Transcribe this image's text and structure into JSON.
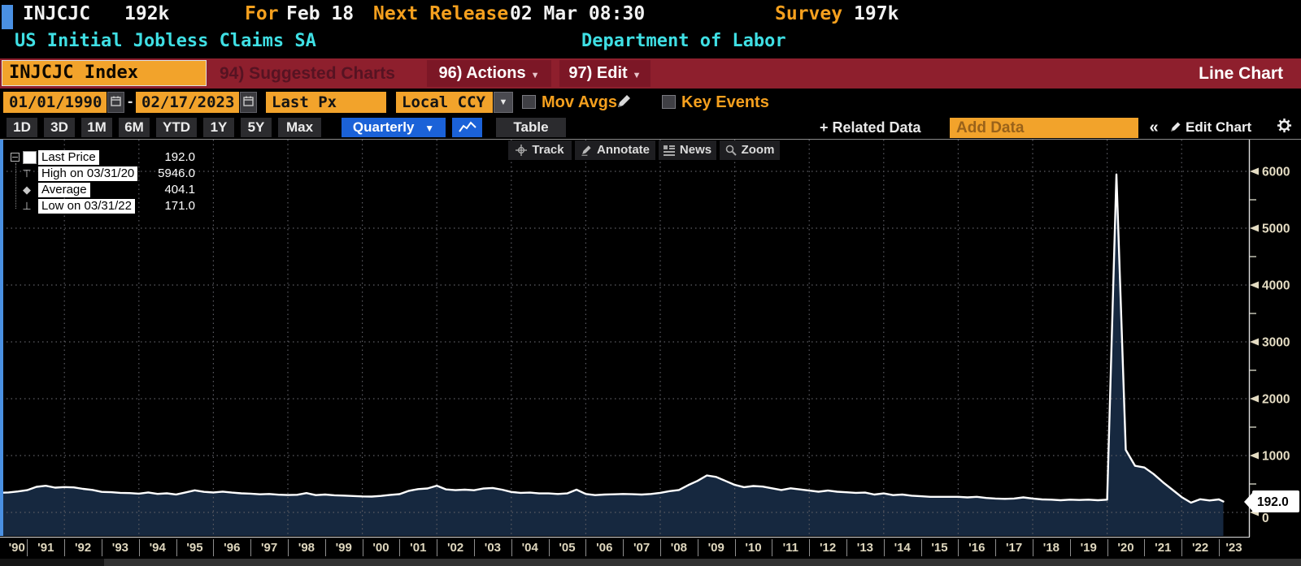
{
  "header": {
    "ticker": "INJCJC",
    "last_value": "192k",
    "for_label": "For",
    "for_value": "Feb 18",
    "next_release_label": "Next Release",
    "next_release_value": "02 Mar 08:30",
    "survey_label": "Survey",
    "survey_value": "197k",
    "security_name": "US Initial Jobless Claims SA",
    "source": "Department of Labor"
  },
  "menubar": {
    "ticker_field": "INJCJC Index",
    "suggested_charts": "94) Suggested Charts",
    "actions": "96) Actions",
    "edit": "97) Edit",
    "chart_type": "Line Chart"
  },
  "controls": {
    "date_from": "01/01/1990",
    "date_to": "02/17/2023",
    "separator": "-",
    "price_field": "Last Px",
    "currency_field": "Local CCY",
    "mov_avgs_label": "Mov Avgs",
    "key_events_label": "Key Events"
  },
  "toolbar": {
    "ranges": [
      "1D",
      "3D",
      "1M",
      "6M",
      "YTD",
      "1Y",
      "5Y",
      "Max"
    ],
    "period": "Quarterly",
    "period_arrow": "▼",
    "table_label": "Table",
    "related_label": "+ Related Data",
    "add_data_placeholder": "Add Data",
    "collapse_label": "«",
    "edit_chart_label": "Edit Chart"
  },
  "chart_tools": [
    {
      "label": "Track",
      "icon": "crosshair-icon"
    },
    {
      "label": "Annotate",
      "icon": "pencil-icon"
    },
    {
      "label": "News",
      "icon": "news-icon"
    },
    {
      "label": "Zoom",
      "icon": "magnifier-icon"
    }
  ],
  "legend": [
    {
      "marker": "swatch",
      "label": "Last Price",
      "value": "192.0"
    },
    {
      "marker": "high",
      "label": "High on 03/31/20",
      "value": "5946.0"
    },
    {
      "marker": "average",
      "label": "Average",
      "value": "404.1"
    },
    {
      "marker": "low",
      "label": "Low on 03/31/22",
      "value": "171.0"
    }
  ],
  "last_price_tag": "192.0",
  "colors": {
    "accent_orange": "#f2a32b",
    "header_orange": "#f5a01e",
    "teal": "#3fdfe4",
    "menubar_red": "#8e1f2d",
    "menu_button_red": "#7c1726",
    "blue_button": "#1b62d8",
    "focus_blue": "#4a90e2",
    "line_color": "#ffffff",
    "area_fill": "#16283f",
    "gridline": "#5d5d63",
    "axis_label": "#e3dbc2"
  },
  "chart_data": {
    "type": "area",
    "title": "INJCJC Index - US Initial Jobless Claims SA",
    "frequency": "Quarterly",
    "date_range": [
      "01/01/1990",
      "02/17/2023"
    ],
    "ylim": [
      0,
      6000
    ],
    "yticks": [
      0,
      1000,
      2000,
      3000,
      4000,
      5000,
      6000
    ],
    "y_minor_ticks": [
      500,
      1500,
      2500,
      3500,
      4500,
      5500
    ],
    "x_year_labels": [
      "'90",
      "'91",
      "'92",
      "'93",
      "'94",
      "'95",
      "'96",
      "'97",
      "'98",
      "'99",
      "'00",
      "'01",
      "'02",
      "'03",
      "'04",
      "'05",
      "'06",
      "'07",
      "'08",
      "'09",
      "'10",
      "'11",
      "'12",
      "'13",
      "'14",
      "'15",
      "'16",
      "'17",
      "'18",
      "'19",
      "'20",
      "'21",
      "'22",
      "'23"
    ],
    "x_gridline_years": [
      1992,
      1994,
      1996,
      1998,
      2000,
      2002,
      2004,
      2006,
      2008,
      2010,
      2012,
      2014,
      2016,
      2018,
      2020,
      2022
    ],
    "grid": true,
    "legend_position": "top-left",
    "stats": {
      "last": 192.0,
      "high_on_03_31_20": 5946.0,
      "average": 404.1,
      "low_on_03_31_22": 171.0
    },
    "series": [
      {
        "name": "Last Price",
        "color": "#ffffff",
        "fill": "#16283f",
        "points": [
          [
            1990.25,
            345
          ],
          [
            1990.5,
            352
          ],
          [
            1990.75,
            368
          ],
          [
            1991.0,
            392
          ],
          [
            1991.25,
            450
          ],
          [
            1991.5,
            468
          ],
          [
            1991.75,
            436
          ],
          [
            1992.0,
            446
          ],
          [
            1992.25,
            440
          ],
          [
            1992.5,
            414
          ],
          [
            1992.75,
            396
          ],
          [
            1993.0,
            362
          ],
          [
            1993.25,
            355
          ],
          [
            1993.5,
            345
          ],
          [
            1993.75,
            340
          ],
          [
            1994.0,
            330
          ],
          [
            1994.25,
            352
          ],
          [
            1994.5,
            326
          ],
          [
            1994.75,
            336
          ],
          [
            1995.0,
            316
          ],
          [
            1995.25,
            352
          ],
          [
            1995.5,
            388
          ],
          [
            1995.75,
            362
          ],
          [
            1996.0,
            352
          ],
          [
            1996.25,
            366
          ],
          [
            1996.5,
            348
          ],
          [
            1996.75,
            336
          ],
          [
            1997.0,
            330
          ],
          [
            1997.25,
            318
          ],
          [
            1997.5,
            324
          ],
          [
            1997.75,
            312
          ],
          [
            1998.0,
            306
          ],
          [
            1998.25,
            310
          ],
          [
            1998.5,
            340
          ],
          [
            1998.75,
            304
          ],
          [
            1999.0,
            314
          ],
          [
            1999.25,
            302
          ],
          [
            1999.5,
            296
          ],
          [
            1999.75,
            288
          ],
          [
            2000.0,
            282
          ],
          [
            2000.25,
            278
          ],
          [
            2000.5,
            290
          ],
          [
            2000.75,
            308
          ],
          [
            2001.0,
            322
          ],
          [
            2001.25,
            380
          ],
          [
            2001.5,
            410
          ],
          [
            2001.75,
            422
          ],
          [
            2002.0,
            470
          ],
          [
            2002.25,
            404
          ],
          [
            2002.5,
            392
          ],
          [
            2002.75,
            400
          ],
          [
            2003.0,
            390
          ],
          [
            2003.25,
            420
          ],
          [
            2003.5,
            430
          ],
          [
            2003.75,
            400
          ],
          [
            2004.0,
            360
          ],
          [
            2004.25,
            344
          ],
          [
            2004.5,
            348
          ],
          [
            2004.75,
            334
          ],
          [
            2005.0,
            334
          ],
          [
            2005.25,
            324
          ],
          [
            2005.5,
            334
          ],
          [
            2005.75,
            400
          ],
          [
            2006.0,
            324
          ],
          [
            2006.25,
            304
          ],
          [
            2006.5,
            314
          ],
          [
            2006.75,
            318
          ],
          [
            2007.0,
            324
          ],
          [
            2007.25,
            320
          ],
          [
            2007.5,
            314
          ],
          [
            2007.75,
            324
          ],
          [
            2008.0,
            344
          ],
          [
            2008.25,
            374
          ],
          [
            2008.5,
            394
          ],
          [
            2008.75,
            480
          ],
          [
            2009.0,
            554
          ],
          [
            2009.25,
            650
          ],
          [
            2009.5,
            624
          ],
          [
            2009.75,
            554
          ],
          [
            2010.0,
            484
          ],
          [
            2010.25,
            444
          ],
          [
            2010.5,
            464
          ],
          [
            2010.75,
            454
          ],
          [
            2011.0,
            424
          ],
          [
            2011.25,
            394
          ],
          [
            2011.5,
            424
          ],
          [
            2011.75,
            404
          ],
          [
            2012.0,
            384
          ],
          [
            2012.25,
            364
          ],
          [
            2012.5,
            384
          ],
          [
            2012.75,
            364
          ],
          [
            2013.0,
            354
          ],
          [
            2013.25,
            344
          ],
          [
            2013.5,
            348
          ],
          [
            2013.75,
            314
          ],
          [
            2014.0,
            334
          ],
          [
            2014.25,
            304
          ],
          [
            2014.5,
            314
          ],
          [
            2014.75,
            294
          ],
          [
            2015.0,
            284
          ],
          [
            2015.25,
            274
          ],
          [
            2015.5,
            274
          ],
          [
            2015.75,
            274
          ],
          [
            2016.0,
            274
          ],
          [
            2016.25,
            264
          ],
          [
            2016.5,
            274
          ],
          [
            2016.75,
            254
          ],
          [
            2017.0,
            244
          ],
          [
            2017.25,
            238
          ],
          [
            2017.5,
            244
          ],
          [
            2017.75,
            264
          ],
          [
            2018.0,
            244
          ],
          [
            2018.25,
            228
          ],
          [
            2018.5,
            224
          ],
          [
            2018.75,
            214
          ],
          [
            2019.0,
            224
          ],
          [
            2019.25,
            218
          ],
          [
            2019.5,
            224
          ],
          [
            2019.75,
            214
          ],
          [
            2020.0,
            224
          ],
          [
            2020.25,
            5946
          ],
          [
            2020.5,
            1100
          ],
          [
            2020.75,
            820
          ],
          [
            2021.0,
            790
          ],
          [
            2021.25,
            675
          ],
          [
            2021.5,
            530
          ],
          [
            2021.75,
            400
          ],
          [
            2022.0,
            270
          ],
          [
            2022.25,
            171
          ],
          [
            2022.5,
            232
          ],
          [
            2022.75,
            210
          ],
          [
            2023.0,
            228
          ],
          [
            2023.12,
            192
          ]
        ]
      }
    ]
  }
}
